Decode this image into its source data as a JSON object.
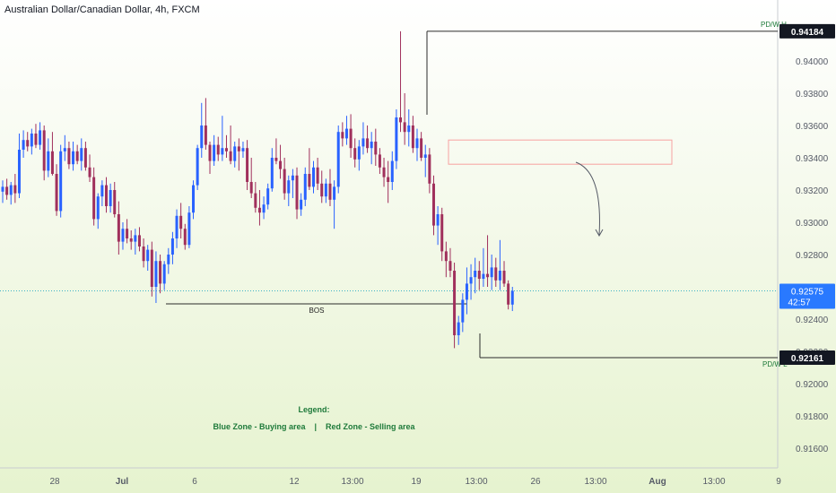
{
  "header": {
    "title": "Australian Dollar/Canadian Dollar, 4h, FXCM"
  },
  "colors": {
    "bull": "#2962ff",
    "bear": "#a0305c",
    "grid_text": "#555a66",
    "annotation": "#1e7a3a",
    "zone": "#f7a1a1",
    "level_line": "#2b2b2b",
    "current_line": "#3db1c4",
    "current_badge": "#2979ff"
  },
  "chart_data": {
    "type": "candlestick",
    "title": "Australian Dollar/Canadian Dollar, 4h, FXCM",
    "ylim": [
      0.9145,
      0.943
    ],
    "y_ticks": [
      "0.94000",
      "0.93800",
      "0.93600",
      "0.93400",
      "0.93200",
      "0.93000",
      "0.92800",
      "0.92600",
      "0.92400",
      "0.92200",
      "0.92000",
      "0.91800",
      "0.91600"
    ],
    "x_ticks": [
      "28",
      "Jul",
      "6",
      "12",
      "13:00",
      "19",
      "13:00",
      "26",
      "13:00",
      "Aug",
      "13:00",
      "9"
    ],
    "candles": [
      {
        "o": 0.9319,
        "h": 0.9326,
        "l": 0.9312,
        "c": 0.9322
      },
      {
        "o": 0.9322,
        "h": 0.9327,
        "l": 0.9314,
        "c": 0.9317
      },
      {
        "o": 0.9317,
        "h": 0.9325,
        "l": 0.9311,
        "c": 0.9323
      },
      {
        "o": 0.9323,
        "h": 0.933,
        "l": 0.9312,
        "c": 0.9318
      },
      {
        "o": 0.9318,
        "h": 0.9355,
        "l": 0.9315,
        "c": 0.9345
      },
      {
        "o": 0.9345,
        "h": 0.9357,
        "l": 0.934,
        "c": 0.9351
      },
      {
        "o": 0.9351,
        "h": 0.9356,
        "l": 0.9344,
        "c": 0.9347
      },
      {
        "o": 0.9347,
        "h": 0.9358,
        "l": 0.9342,
        "c": 0.9355
      },
      {
        "o": 0.9355,
        "h": 0.9361,
        "l": 0.9346,
        "c": 0.9348
      },
      {
        "o": 0.9348,
        "h": 0.9362,
        "l": 0.9345,
        "c": 0.9357
      },
      {
        "o": 0.9357,
        "h": 0.936,
        "l": 0.9326,
        "c": 0.9332
      },
      {
        "o": 0.9332,
        "h": 0.9352,
        "l": 0.9328,
        "c": 0.9344
      },
      {
        "o": 0.9344,
        "h": 0.9356,
        "l": 0.9329,
        "c": 0.933
      },
      {
        "o": 0.933,
        "h": 0.9336,
        "l": 0.9304,
        "c": 0.9307
      },
      {
        "o": 0.9307,
        "h": 0.9348,
        "l": 0.9303,
        "c": 0.9344
      },
      {
        "o": 0.9344,
        "h": 0.9354,
        "l": 0.9338,
        "c": 0.9346
      },
      {
        "o": 0.9346,
        "h": 0.935,
        "l": 0.9333,
        "c": 0.9336
      },
      {
        "o": 0.9336,
        "h": 0.935,
        "l": 0.9332,
        "c": 0.9344
      },
      {
        "o": 0.9344,
        "h": 0.9348,
        "l": 0.9336,
        "c": 0.9338
      },
      {
        "o": 0.9338,
        "h": 0.9352,
        "l": 0.9332,
        "c": 0.9346
      },
      {
        "o": 0.9346,
        "h": 0.935,
        "l": 0.9332,
        "c": 0.9334
      },
      {
        "o": 0.9334,
        "h": 0.9342,
        "l": 0.9325,
        "c": 0.9328
      },
      {
        "o": 0.9328,
        "h": 0.9334,
        "l": 0.9298,
        "c": 0.9302
      },
      {
        "o": 0.9302,
        "h": 0.9318,
        "l": 0.9296,
        "c": 0.9316
      },
      {
        "o": 0.9316,
        "h": 0.9326,
        "l": 0.931,
        "c": 0.9323
      },
      {
        "o": 0.9323,
        "h": 0.9328,
        "l": 0.9306,
        "c": 0.931
      },
      {
        "o": 0.931,
        "h": 0.9324,
        "l": 0.9306,
        "c": 0.932
      },
      {
        "o": 0.932,
        "h": 0.9325,
        "l": 0.9303,
        "c": 0.9305
      },
      {
        "o": 0.9305,
        "h": 0.9313,
        "l": 0.928,
        "c": 0.9288
      },
      {
        "o": 0.9288,
        "h": 0.93,
        "l": 0.9283,
        "c": 0.9296
      },
      {
        "o": 0.9296,
        "h": 0.9302,
        "l": 0.9287,
        "c": 0.929
      },
      {
        "o": 0.929,
        "h": 0.9295,
        "l": 0.9283,
        "c": 0.9288
      },
      {
        "o": 0.9288,
        "h": 0.9296,
        "l": 0.928,
        "c": 0.9292
      },
      {
        "o": 0.9292,
        "h": 0.9297,
        "l": 0.9282,
        "c": 0.9285
      },
      {
        "o": 0.9285,
        "h": 0.929,
        "l": 0.9272,
        "c": 0.9276
      },
      {
        "o": 0.9276,
        "h": 0.9286,
        "l": 0.927,
        "c": 0.9283
      },
      {
        "o": 0.9283,
        "h": 0.9288,
        "l": 0.9254,
        "c": 0.926
      },
      {
        "o": 0.926,
        "h": 0.9282,
        "l": 0.925,
        "c": 0.9276
      },
      {
        "o": 0.9276,
        "h": 0.928,
        "l": 0.9256,
        "c": 0.9262
      },
      {
        "o": 0.9262,
        "h": 0.9276,
        "l": 0.9258,
        "c": 0.9274
      },
      {
        "o": 0.9274,
        "h": 0.9284,
        "l": 0.9268,
        "c": 0.928
      },
      {
        "o": 0.928,
        "h": 0.9294,
        "l": 0.9274,
        "c": 0.929
      },
      {
        "o": 0.929,
        "h": 0.9308,
        "l": 0.9284,
        "c": 0.9304
      },
      {
        "o": 0.9304,
        "h": 0.9312,
        "l": 0.929,
        "c": 0.9296
      },
      {
        "o": 0.9296,
        "h": 0.9299,
        "l": 0.9283,
        "c": 0.9286
      },
      {
        "o": 0.9286,
        "h": 0.931,
        "l": 0.9284,
        "c": 0.9306
      },
      {
        "o": 0.9306,
        "h": 0.9326,
        "l": 0.9302,
        "c": 0.9323
      },
      {
        "o": 0.9323,
        "h": 0.9348,
        "l": 0.932,
        "c": 0.9346
      },
      {
        "o": 0.9346,
        "h": 0.9374,
        "l": 0.934,
        "c": 0.936
      },
      {
        "o": 0.936,
        "h": 0.9377,
        "l": 0.9345,
        "c": 0.9348
      },
      {
        "o": 0.9348,
        "h": 0.935,
        "l": 0.933,
        "c": 0.9338
      },
      {
        "o": 0.9338,
        "h": 0.9354,
        "l": 0.9335,
        "c": 0.9348
      },
      {
        "o": 0.9348,
        "h": 0.9353,
        "l": 0.9338,
        "c": 0.9342
      },
      {
        "o": 0.9342,
        "h": 0.9366,
        "l": 0.9338,
        "c": 0.9346
      },
      {
        "o": 0.9346,
        "h": 0.9354,
        "l": 0.934,
        "c": 0.9344
      },
      {
        "o": 0.9344,
        "h": 0.936,
        "l": 0.9336,
        "c": 0.9338
      },
      {
        "o": 0.9338,
        "h": 0.935,
        "l": 0.9334,
        "c": 0.9347
      },
      {
        "o": 0.9347,
        "h": 0.9352,
        "l": 0.9332,
        "c": 0.9344
      },
      {
        "o": 0.9344,
        "h": 0.935,
        "l": 0.934,
        "c": 0.9346
      },
      {
        "o": 0.9346,
        "h": 0.9351,
        "l": 0.932,
        "c": 0.9325
      },
      {
        "o": 0.9325,
        "h": 0.934,
        "l": 0.9315,
        "c": 0.9318
      },
      {
        "o": 0.9318,
        "h": 0.9325,
        "l": 0.9306,
        "c": 0.9309
      },
      {
        "o": 0.9309,
        "h": 0.932,
        "l": 0.9298,
        "c": 0.9306
      },
      {
        "o": 0.9306,
        "h": 0.9316,
        "l": 0.9302,
        "c": 0.9311
      },
      {
        "o": 0.9311,
        "h": 0.9324,
        "l": 0.9308,
        "c": 0.9321
      },
      {
        "o": 0.9321,
        "h": 0.9346,
        "l": 0.9319,
        "c": 0.934
      },
      {
        "o": 0.934,
        "h": 0.9352,
        "l": 0.9336,
        "c": 0.9338
      },
      {
        "o": 0.9338,
        "h": 0.9348,
        "l": 0.9327,
        "c": 0.9333
      },
      {
        "o": 0.9333,
        "h": 0.934,
        "l": 0.9314,
        "c": 0.9318
      },
      {
        "o": 0.9318,
        "h": 0.9329,
        "l": 0.931,
        "c": 0.9326
      },
      {
        "o": 0.9326,
        "h": 0.9333,
        "l": 0.9315,
        "c": 0.9329
      },
      {
        "o": 0.9329,
        "h": 0.9334,
        "l": 0.9302,
        "c": 0.9308
      },
      {
        "o": 0.9308,
        "h": 0.9318,
        "l": 0.9304,
        "c": 0.9314
      },
      {
        "o": 0.9314,
        "h": 0.9334,
        "l": 0.931,
        "c": 0.933
      },
      {
        "o": 0.933,
        "h": 0.9346,
        "l": 0.932,
        "c": 0.9322
      },
      {
        "o": 0.9322,
        "h": 0.9338,
        "l": 0.9318,
        "c": 0.9334
      },
      {
        "o": 0.9334,
        "h": 0.934,
        "l": 0.932,
        "c": 0.9324
      },
      {
        "o": 0.9324,
        "h": 0.9332,
        "l": 0.9312,
        "c": 0.9316
      },
      {
        "o": 0.9316,
        "h": 0.9327,
        "l": 0.9312,
        "c": 0.9324
      },
      {
        "o": 0.9324,
        "h": 0.9333,
        "l": 0.931,
        "c": 0.9314
      },
      {
        "o": 0.9314,
        "h": 0.9326,
        "l": 0.9296,
        "c": 0.9322
      },
      {
        "o": 0.9322,
        "h": 0.936,
        "l": 0.9318,
        "c": 0.9356
      },
      {
        "o": 0.9356,
        "h": 0.9362,
        "l": 0.9347,
        "c": 0.9352
      },
      {
        "o": 0.9352,
        "h": 0.9366,
        "l": 0.9348,
        "c": 0.9358
      },
      {
        "o": 0.9358,
        "h": 0.9367,
        "l": 0.934,
        "c": 0.9346
      },
      {
        "o": 0.9346,
        "h": 0.9352,
        "l": 0.9334,
        "c": 0.9339
      },
      {
        "o": 0.9339,
        "h": 0.9351,
        "l": 0.9332,
        "c": 0.9347
      },
      {
        "o": 0.9347,
        "h": 0.9362,
        "l": 0.9342,
        "c": 0.9352
      },
      {
        "o": 0.9352,
        "h": 0.936,
        "l": 0.9343,
        "c": 0.9346
      },
      {
        "o": 0.9346,
        "h": 0.9356,
        "l": 0.9336,
        "c": 0.935
      },
      {
        "o": 0.935,
        "h": 0.9358,
        "l": 0.9335,
        "c": 0.9342
      },
      {
        "o": 0.9342,
        "h": 0.9346,
        "l": 0.933,
        "c": 0.9334
      },
      {
        "o": 0.9334,
        "h": 0.934,
        "l": 0.9322,
        "c": 0.9328
      },
      {
        "o": 0.9328,
        "h": 0.9338,
        "l": 0.9312,
        "c": 0.9325
      },
      {
        "o": 0.9325,
        "h": 0.9344,
        "l": 0.932,
        "c": 0.9338
      },
      {
        "o": 0.9338,
        "h": 0.937,
        "l": 0.9333,
        "c": 0.9365
      },
      {
        "o": 0.9365,
        "h": 0.94184,
        "l": 0.9356,
        "c": 0.9362
      },
      {
        "o": 0.9362,
        "h": 0.938,
        "l": 0.9348,
        "c": 0.9356
      },
      {
        "o": 0.9356,
        "h": 0.937,
        "l": 0.9347,
        "c": 0.936
      },
      {
        "o": 0.936,
        "h": 0.9366,
        "l": 0.9343,
        "c": 0.9346
      },
      {
        "o": 0.9346,
        "h": 0.9358,
        "l": 0.9338,
        "c": 0.9352
      },
      {
        "o": 0.9352,
        "h": 0.9356,
        "l": 0.9338,
        "c": 0.934
      },
      {
        "o": 0.934,
        "h": 0.9348,
        "l": 0.9328,
        "c": 0.9342
      },
      {
        "o": 0.9342,
        "h": 0.9346,
        "l": 0.9318,
        "c": 0.9324
      },
      {
        "o": 0.9324,
        "h": 0.9329,
        "l": 0.9292,
        "c": 0.9298
      },
      {
        "o": 0.9298,
        "h": 0.931,
        "l": 0.9286,
        "c": 0.9305
      },
      {
        "o": 0.9305,
        "h": 0.9309,
        "l": 0.9276,
        "c": 0.9282
      },
      {
        "o": 0.9282,
        "h": 0.9288,
        "l": 0.9266,
        "c": 0.9276
      },
      {
        "o": 0.9276,
        "h": 0.9284,
        "l": 0.9266,
        "c": 0.927
      },
      {
        "o": 0.927,
        "h": 0.9275,
        "l": 0.9222,
        "c": 0.923
      },
      {
        "o": 0.923,
        "h": 0.9242,
        "l": 0.9224,
        "c": 0.9238
      },
      {
        "o": 0.9238,
        "h": 0.9256,
        "l": 0.9232,
        "c": 0.9252
      },
      {
        "o": 0.9252,
        "h": 0.9272,
        "l": 0.9243,
        "c": 0.9262
      },
      {
        "o": 0.9262,
        "h": 0.9274,
        "l": 0.9252,
        "c": 0.9266
      },
      {
        "o": 0.9266,
        "h": 0.9278,
        "l": 0.9256,
        "c": 0.927
      },
      {
        "o": 0.927,
        "h": 0.9276,
        "l": 0.9258,
        "c": 0.9265
      },
      {
        "o": 0.9265,
        "h": 0.9284,
        "l": 0.926,
        "c": 0.9268
      },
      {
        "o": 0.9268,
        "h": 0.9292,
        "l": 0.926,
        "c": 0.9266
      },
      {
        "o": 0.9266,
        "h": 0.928,
        "l": 0.9258,
        "c": 0.9272
      },
      {
        "o": 0.9272,
        "h": 0.9278,
        "l": 0.926,
        "c": 0.9264
      },
      {
        "o": 0.9264,
        "h": 0.9289,
        "l": 0.9258,
        "c": 0.927
      },
      {
        "o": 0.927,
        "h": 0.9276,
        "l": 0.926,
        "c": 0.9262
      },
      {
        "o": 0.9262,
        "h": 0.9264,
        "l": 0.9246,
        "c": 0.9249
      },
      {
        "o": 0.9249,
        "h": 0.926,
        "l": 0.9245,
        "c": 0.92575
      }
    ],
    "levels": [
      {
        "label": "PD/W H",
        "price": 0.94184,
        "badge": "0.94184"
      },
      {
        "label": "PD/W L",
        "price": 0.92161,
        "badge": "0.92161"
      },
      {
        "label": "BOS",
        "price": 0.9251
      }
    ],
    "current_price": {
      "value": 0.92575,
      "badge": "0.92575",
      "countdown": "42:57"
    },
    "sell_zone": {
      "price_top": 0.9351,
      "price_bottom": 0.9336
    },
    "legend": {
      "heading": "Legend:",
      "text": "Blue Zone - Buying area    |    Red Zone - Selling area"
    }
  }
}
